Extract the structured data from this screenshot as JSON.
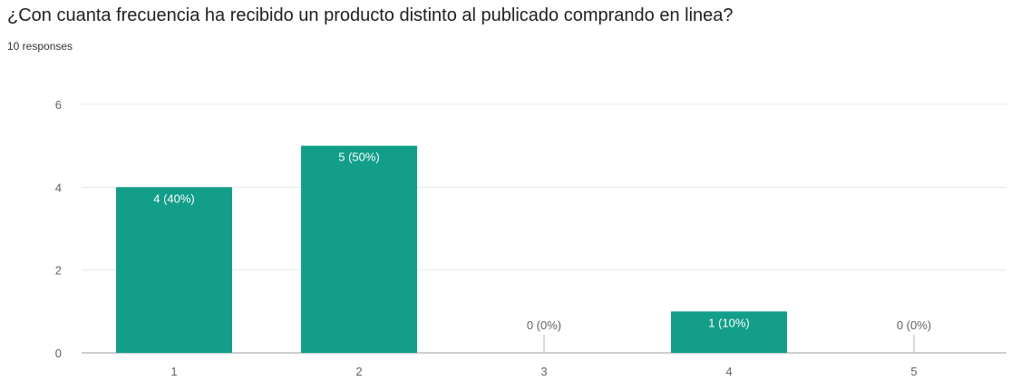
{
  "header": {
    "question": "¿Con cuanta frecuencia ha recibido un producto distinto al publicado comprando en linea?",
    "responses": "10 responses"
  },
  "colors": {
    "bar": "#129e89",
    "grid": "#e8e8e8",
    "axis": "#9e9e9e"
  },
  "chart_data": {
    "type": "bar",
    "categories": [
      "1",
      "2",
      "3",
      "4",
      "5"
    ],
    "values": [
      4,
      5,
      0,
      1,
      0
    ],
    "data_labels": [
      "4 (40%)",
      "5 (50%)",
      "0 (0%)",
      "1 (10%)",
      "0 (0%)"
    ],
    "ylim": [
      0,
      6
    ],
    "yticks": [
      0,
      2,
      4,
      6
    ],
    "grid": true,
    "title": "",
    "xlabel": "",
    "ylabel": ""
  }
}
